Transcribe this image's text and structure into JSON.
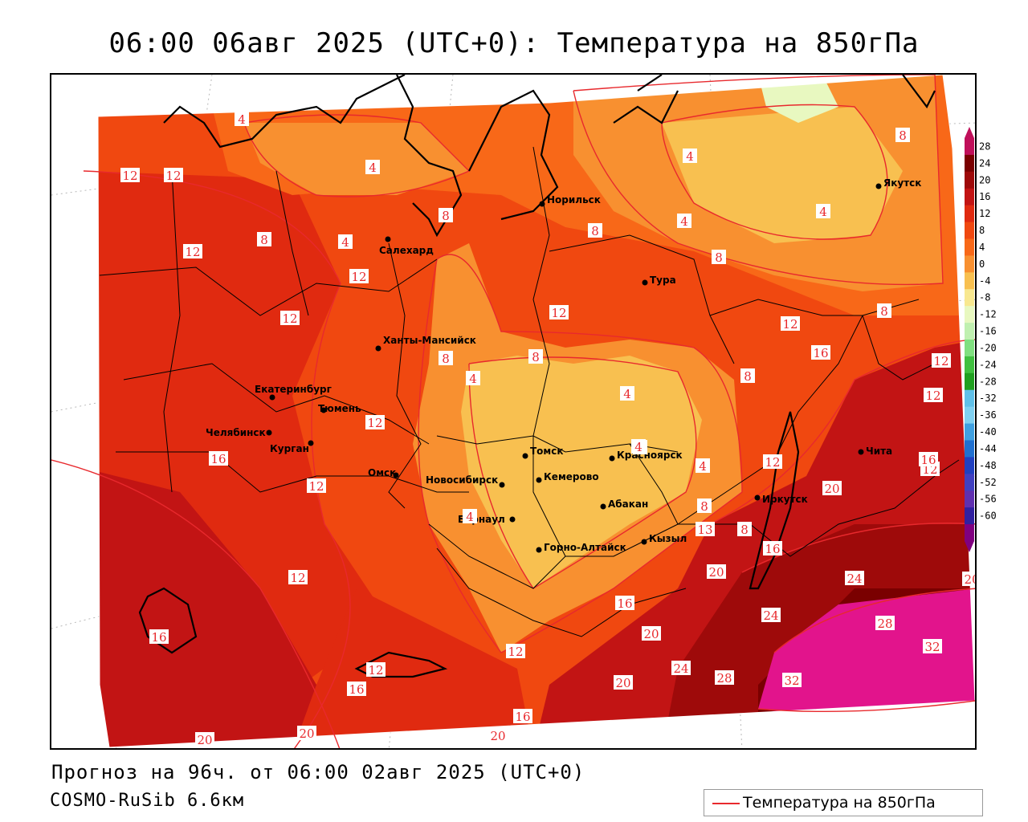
{
  "title": "06:00 06авг 2025 (UTC+0): Температура на 850гПа",
  "footer": {
    "forecast": "Прогноз на 96ч. от 06:00 02авг 2025 (UTC+0)",
    "model": "COSMO-RuSib 6.6км"
  },
  "legend": {
    "label": "Температура на 850гПа",
    "line_color": "#e8292d"
  },
  "colorbar": {
    "ticks": [
      "28",
      "24",
      "20",
      "16",
      "12",
      "8",
      "4",
      "0",
      "-4",
      "-8",
      "-12",
      "-16",
      "-20",
      "-24",
      "-28",
      "-32",
      "-36",
      "-40",
      "-44",
      "-48",
      "-52",
      "-56",
      "-60"
    ],
    "colors": [
      "#c0105a",
      "#7a0000",
      "#9e0a0a",
      "#c21414",
      "#e02a10",
      "#f04810",
      "#f86818",
      "#f89030",
      "#f8c050",
      "#f8e890",
      "#e8f8c0",
      "#c0f0b0",
      "#80e080",
      "#40c040",
      "#20a020",
      "#60c0e8",
      "#80d0f0",
      "#40a0e0",
      "#2070d0",
      "#2040c0",
      "#4040c0",
      "#6030b0",
      "#3020a0",
      "#800080"
    ]
  },
  "cities": [
    {
      "name": "Норильск"
    },
    {
      "name": "Якутск"
    },
    {
      "name": "Салехард"
    },
    {
      "name": "Тура"
    },
    {
      "name": "Ханты-Мансийск"
    },
    {
      "name": "Екатеринбург"
    },
    {
      "name": "Тюмень"
    },
    {
      "name": "Челябинск"
    },
    {
      "name": "Курган"
    },
    {
      "name": "Омск"
    },
    {
      "name": "Томск"
    },
    {
      "name": "Красноярск"
    },
    {
      "name": "Новосибирск"
    },
    {
      "name": "Кемерово"
    },
    {
      "name": "Абакан"
    },
    {
      "name": "Барнаул"
    },
    {
      "name": "Иркутск"
    },
    {
      "name": "Чита"
    },
    {
      "name": "Кызыл"
    },
    {
      "name": "Горно-Алтайск"
    }
  ],
  "contour_labels": [
    {
      "v": "4"
    },
    {
      "v": "4"
    },
    {
      "v": "8"
    },
    {
      "v": "4"
    },
    {
      "v": "8"
    },
    {
      "v": "12"
    },
    {
      "v": "12"
    },
    {
      "v": "8"
    },
    {
      "v": "4"
    },
    {
      "v": "8"
    },
    {
      "v": "4"
    },
    {
      "v": "4"
    },
    {
      "v": "12"
    },
    {
      "v": "12"
    },
    {
      "v": "8"
    },
    {
      "v": "8"
    },
    {
      "v": "12"
    },
    {
      "v": "16"
    },
    {
      "v": "12"
    },
    {
      "v": "12"
    },
    {
      "v": "8"
    },
    {
      "v": "4"
    },
    {
      "v": "4"
    },
    {
      "v": "4"
    },
    {
      "v": "8"
    },
    {
      "v": "12"
    },
    {
      "v": "12"
    },
    {
      "v": "16"
    },
    {
      "v": "12"
    },
    {
      "v": "12"
    },
    {
      "v": "12"
    },
    {
      "v": "4"
    },
    {
      "v": "8"
    },
    {
      "v": "4"
    },
    {
      "v": "4"
    },
    {
      "v": "12"
    },
    {
      "v": "8"
    },
    {
      "v": "13"
    },
    {
      "v": "16"
    },
    {
      "v": "20"
    },
    {
      "v": "20"
    },
    {
      "v": "24"
    },
    {
      "v": "24"
    },
    {
      "v": "28"
    },
    {
      "v": "32"
    },
    {
      "v": "16"
    },
    {
      "v": "12"
    },
    {
      "v": "16"
    },
    {
      "v": "12"
    },
    {
      "v": "20"
    },
    {
      "v": "20"
    },
    {
      "v": "24"
    },
    {
      "v": "28"
    },
    {
      "v": "32"
    },
    {
      "v": "16"
    },
    {
      "v": "16"
    },
    {
      "v": "20"
    },
    {
      "v": "20"
    },
    {
      "v": "20"
    },
    {
      "v": "12"
    },
    {
      "v": "16"
    },
    {
      "v": "8"
    },
    {
      "v": "20"
    }
  ]
}
